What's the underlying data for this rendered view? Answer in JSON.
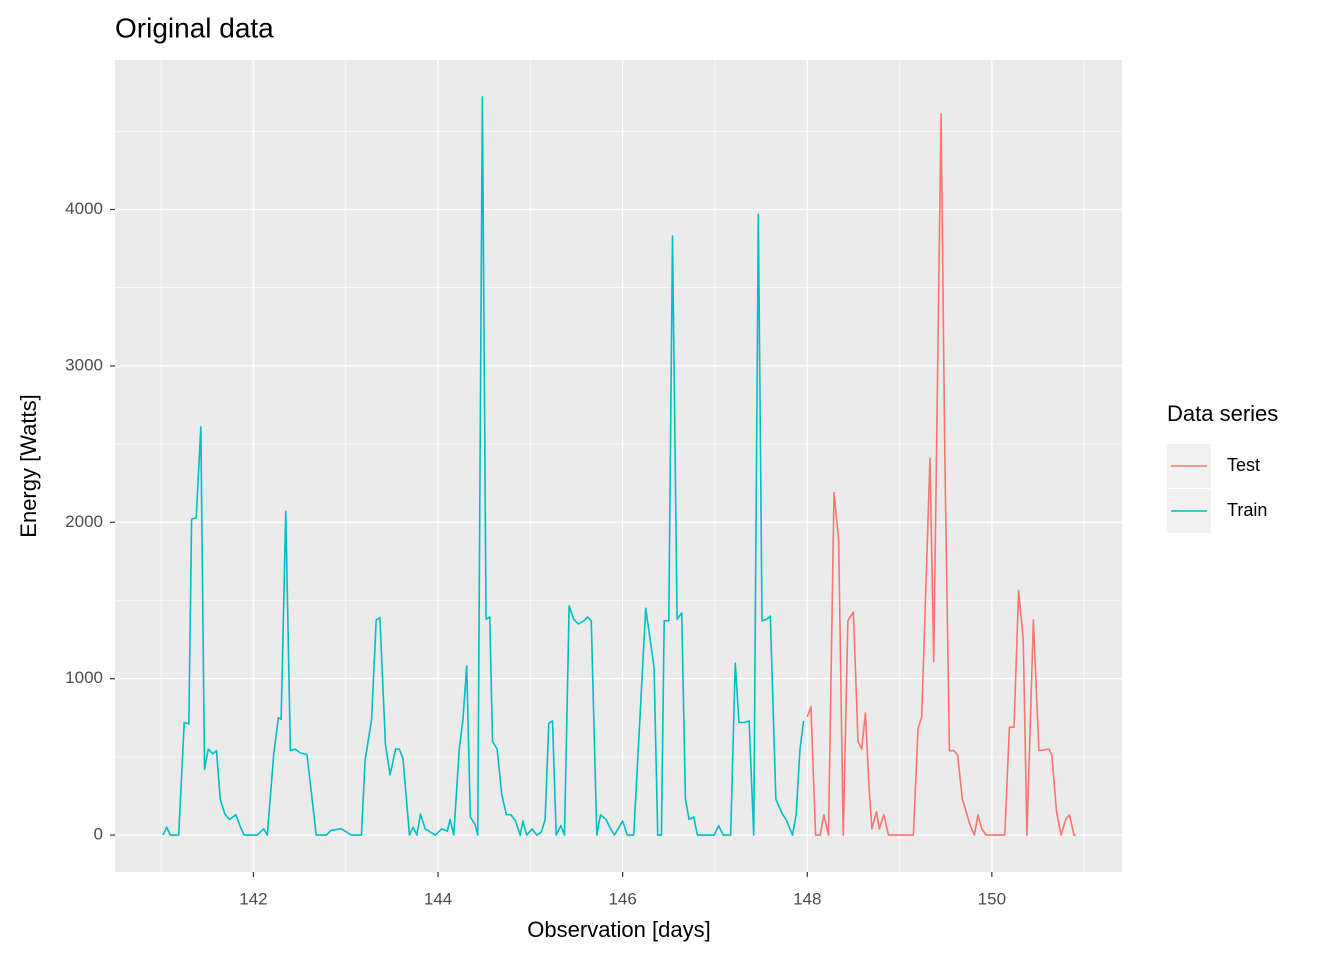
{
  "chart_data": {
    "type": "line",
    "title": "Original data",
    "x_label": "Observation [days]",
    "y_label": "Energy [Watts]",
    "legend_title": "Data series",
    "legend_position": "right",
    "grid": true,
    "xlim": [
      140.5,
      151.41
    ],
    "ylim": [
      -236,
      4956
    ],
    "xticks": [
      142,
      144,
      146,
      148,
      150
    ],
    "yticks": [
      0,
      1000,
      2000,
      3000,
      4000
    ],
    "xminor": [
      141,
      143,
      145,
      147,
      149,
      151
    ],
    "yminor": [
      500,
      1500,
      2500,
      3500,
      4500
    ],
    "series": [
      {
        "name": "Test",
        "color": "#F8766D",
        "x": [
          148.0,
          148.04,
          148.09,
          148.14,
          148.18,
          148.23,
          148.29,
          148.34,
          148.39,
          148.44,
          148.5,
          148.55,
          148.59,
          148.63,
          148.67,
          148.7,
          148.75,
          148.78,
          148.83,
          148.88,
          148.97,
          149.09,
          149.15,
          149.2,
          149.24,
          149.33,
          149.37,
          149.45,
          149.49,
          149.54,
          149.59,
          149.63,
          149.68,
          149.72,
          149.76,
          149.81,
          149.85,
          149.89,
          149.94,
          150.03,
          150.14,
          150.19,
          150.24,
          150.29,
          150.34,
          150.38,
          150.45,
          150.51,
          150.56,
          150.62,
          150.65,
          150.7,
          150.75,
          150.8,
          150.84,
          150.89,
          150.91
        ],
        "values": [
          755,
          820,
          0,
          0,
          130,
          0,
          2190,
          1890,
          0,
          1370,
          1425,
          600,
          550,
          780,
          300,
          40,
          150,
          40,
          130,
          0,
          0,
          0,
          0,
          680,
          755,
          2410,
          1110,
          4610,
          2450,
          540,
          540,
          510,
          230,
          155,
          70,
          0,
          130,
          40,
          0,
          0,
          0,
          690,
          690,
          1565,
          1250,
          0,
          1375,
          540,
          545,
          550,
          510,
          155,
          0,
          100,
          130,
          0,
          0
        ]
      },
      {
        "name": "Train",
        "color": "#00BFC4",
        "x": [
          141.02,
          141.06,
          141.1,
          141.19,
          141.25,
          141.3,
          141.33,
          141.38,
          141.43,
          141.47,
          141.51,
          141.56,
          141.6,
          141.64,
          141.69,
          141.74,
          141.81,
          141.86,
          141.9,
          142.04,
          142.11,
          142.15,
          142.22,
          142.27,
          142.3,
          142.35,
          142.4,
          142.45,
          142.51,
          142.58,
          142.68,
          142.79,
          142.84,
          142.95,
          143.02,
          143.06,
          143.17,
          143.21,
          143.28,
          143.33,
          143.37,
          143.43,
          143.48,
          143.54,
          143.58,
          143.62,
          143.69,
          143.73,
          143.77,
          143.81,
          143.86,
          143.97,
          144.04,
          144.1,
          144.13,
          144.17,
          144.23,
          144.27,
          144.31,
          144.35,
          144.4,
          144.43,
          144.48,
          144.52,
          144.56,
          144.59,
          144.64,
          144.69,
          144.74,
          144.79,
          144.84,
          144.89,
          144.92,
          144.96,
          145.02,
          145.07,
          145.12,
          145.16,
          145.2,
          145.24,
          145.28,
          145.33,
          145.37,
          145.42,
          145.47,
          145.52,
          145.58,
          145.62,
          145.66,
          145.72,
          145.76,
          145.82,
          145.87,
          145.91,
          146.0,
          146.05,
          146.12,
          146.25,
          146.34,
          146.38,
          146.42,
          146.45,
          146.5,
          146.54,
          146.59,
          146.64,
          146.68,
          146.72,
          146.77,
          146.81,
          146.92,
          146.99,
          147.04,
          147.09,
          147.17,
          147.22,
          147.26,
          147.32,
          147.37,
          147.42,
          147.47,
          147.51,
          147.56,
          147.6,
          147.66,
          147.73,
          147.77,
          147.84,
          147.88,
          147.92,
          147.96
        ],
        "values": [
          0,
          50,
          0,
          0,
          720,
          710,
          2020,
          2030,
          2610,
          420,
          550,
          520,
          540,
          230,
          135,
          100,
          130,
          50,
          0,
          0,
          40,
          0,
          520,
          750,
          740,
          2070,
          540,
          550,
          525,
          515,
          0,
          0,
          30,
          40,
          15,
          0,
          0,
          480,
          740,
          1375,
          1390,
          580,
          385,
          550,
          550,
          490,
          0,
          50,
          0,
          135,
          40,
          0,
          40,
          25,
          100,
          0,
          550,
          740,
          1080,
          115,
          70,
          0,
          4720,
          1380,
          1395,
          600,
          550,
          260,
          130,
          130,
          90,
          0,
          90,
          0,
          40,
          0,
          20,
          100,
          715,
          730,
          0,
          60,
          0,
          1465,
          1380,
          1350,
          1370,
          1395,
          1370,
          0,
          130,
          100,
          40,
          0,
          90,
          0,
          0,
          1450,
          1075,
          0,
          0,
          1370,
          1370,
          3830,
          1380,
          1420,
          230,
          100,
          115,
          0,
          0,
          0,
          60,
          0,
          0,
          1100,
          720,
          720,
          730,
          0,
          3970,
          1370,
          1380,
          1400,
          230,
          135,
          100,
          0,
          130,
          540,
          730
        ]
      }
    ]
  }
}
